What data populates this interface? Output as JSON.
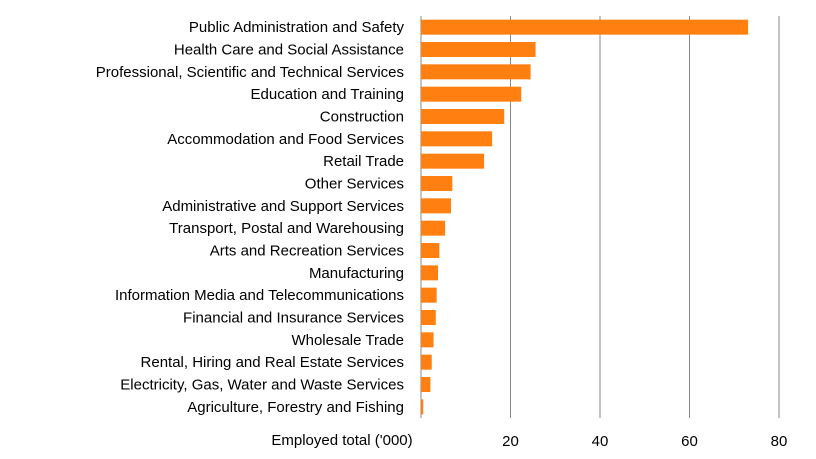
{
  "chart_data": {
    "type": "bar",
    "orientation": "horizontal",
    "categories": [
      "Public Administration and Safety",
      "Health Care and Social Assistance",
      "Professional, Scientific and Technical Services",
      "Education and Training",
      "Construction",
      "Accommodation and Food Services",
      "Retail Trade",
      "Other Services",
      "Administrative and Support Services",
      "Transport, Postal and Warehousing",
      "Arts and Recreation Services",
      "Manufacturing",
      "Information Media and Telecommunications",
      "Financial and Insurance Services",
      "Wholesale Trade",
      "Rental, Hiring and Real Estate Services",
      "Electricity, Gas, Water and Waste Services",
      "Agriculture, Forestry and Fishing"
    ],
    "values": [
      73.1,
      25.6,
      24.5,
      22.4,
      18.6,
      15.9,
      14.1,
      7.0,
      6.7,
      5.4,
      4.1,
      3.8,
      3.5,
      3.3,
      2.8,
      2.4,
      2.1,
      0.5
    ],
    "xlabel": "Employed total ('000)",
    "ylabel": "",
    "xlim": [
      0,
      80
    ],
    "ticks": [
      "20",
      "40",
      "60",
      "80"
    ],
    "tick_values": [
      20,
      40,
      60,
      80
    ],
    "bar_color": "#FF7F11",
    "gridline_color": "#888888",
    "grid": true
  }
}
